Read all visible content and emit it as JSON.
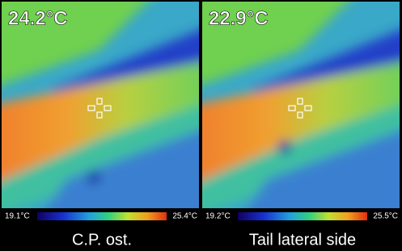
{
  "panels": [
    {
      "reading": "24.2°C",
      "scale_min": "19.1°C",
      "scale_max": "25.4°C",
      "caption": "C.P. ost."
    },
    {
      "reading": "22.9°C",
      "scale_min": "19.2°C",
      "scale_max": "25.5°C",
      "caption": "Tail lateral side"
    }
  ]
}
